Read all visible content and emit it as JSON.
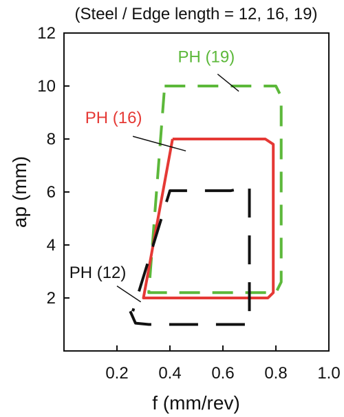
{
  "chart_data": {
    "type": "line",
    "title": "(Steel / Edge length = 12, 16, 19)",
    "xlabel": "f (mm/rev)",
    "ylabel": "ap (mm)",
    "xlim": [
      0.0,
      1.0
    ],
    "ylim": [
      0,
      12
    ],
    "xticks": [
      "0.2",
      "0.4",
      "0.6",
      "0.8",
      "1.0"
    ],
    "xtick_values": [
      0.2,
      0.4,
      0.6,
      0.8,
      1.0
    ],
    "yticks": [
      "2",
      "4",
      "6",
      "8",
      "10",
      "12"
    ],
    "ytick_values": [
      2,
      4,
      6,
      8,
      10,
      12
    ],
    "grid": false,
    "series": [
      {
        "name": "PH (19)",
        "color": "#5cb83a",
        "dash": "dashed",
        "outline": [
          [
            0.38,
            10.0
          ],
          [
            0.8,
            10.0
          ],
          [
            0.82,
            9.6
          ],
          [
            0.82,
            2.6
          ],
          [
            0.8,
            2.2
          ],
          [
            0.32,
            2.2
          ],
          [
            0.38,
            10.0
          ]
        ],
        "label_at": [
          0.43,
          10.9
        ],
        "leader": [
          [
            0.58,
            10.45
          ],
          [
            0.66,
            9.8
          ]
        ]
      },
      {
        "name": "PH (16)",
        "color": "#e53935",
        "dash": "solid",
        "outline": [
          [
            0.41,
            8.0
          ],
          [
            0.76,
            8.0
          ],
          [
            0.79,
            7.8
          ],
          [
            0.79,
            2.2
          ],
          [
            0.77,
            2.0
          ],
          [
            0.3,
            2.0
          ],
          [
            0.41,
            8.0
          ]
        ],
        "label_at": [
          0.08,
          8.6
        ],
        "leader": [
          [
            0.26,
            8.1
          ],
          [
            0.46,
            7.55
          ]
        ]
      },
      {
        "name": "PH (12)",
        "color": "#111111",
        "dash": "long-dash",
        "outline": [
          [
            0.25,
            1.5
          ],
          [
            0.27,
            1.05
          ],
          [
            0.32,
            1.0
          ],
          [
            0.7,
            1.0
          ],
          [
            0.7,
            6.2
          ],
          [
            0.63,
            6.05
          ],
          [
            0.4,
            6.05
          ],
          [
            0.26,
            1.5
          ]
        ],
        "label_at": [
          0.02,
          2.75
        ],
        "leader": [
          [
            0.2,
            2.45
          ],
          [
            0.29,
            1.85
          ]
        ]
      }
    ]
  }
}
